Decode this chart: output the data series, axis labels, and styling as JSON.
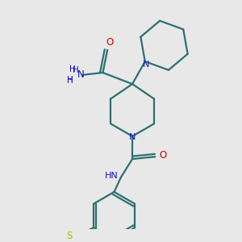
{
  "bg_color": "#e8e8e8",
  "bond_color": "#2d7070",
  "N_color": "#1414cc",
  "O_color": "#cc0000",
  "S_color": "#b8b800",
  "fig_width": 3.0,
  "fig_height": 3.0,
  "dpi": 100,
  "xlim": [
    0,
    10
  ],
  "ylim": [
    0,
    10
  ]
}
